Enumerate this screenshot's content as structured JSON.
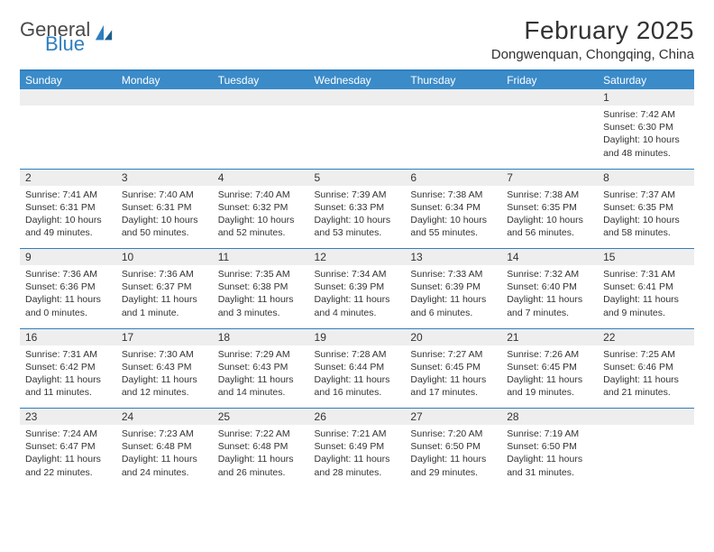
{
  "brand": {
    "textA": "General",
    "textB": "Blue",
    "colorA": "#4a4a4a",
    "colorB": "#2f7fbf"
  },
  "title": "February 2025",
  "location": "Dongwenquan, Chongqing, China",
  "accent_color": "#3b8bc9",
  "divider_color": "#2f7fbf",
  "daynum_bg": "#eeeeee",
  "text_color": "#333333",
  "background_color": "#ffffff",
  "font_family": "Arial, Helvetica, sans-serif",
  "title_fontsize": 28,
  "location_fontsize": 15,
  "header_fontsize": 12,
  "cell_fontsize": 10.5,
  "weekdays": [
    "Sunday",
    "Monday",
    "Tuesday",
    "Wednesday",
    "Thursday",
    "Friday",
    "Saturday"
  ],
  "weeks": [
    [
      null,
      null,
      null,
      null,
      null,
      null,
      {
        "n": "1",
        "sr": "Sunrise: 7:42 AM",
        "ss": "Sunset: 6:30 PM",
        "dl": "Daylight: 10 hours and 48 minutes."
      }
    ],
    [
      {
        "n": "2",
        "sr": "Sunrise: 7:41 AM",
        "ss": "Sunset: 6:31 PM",
        "dl": "Daylight: 10 hours and 49 minutes."
      },
      {
        "n": "3",
        "sr": "Sunrise: 7:40 AM",
        "ss": "Sunset: 6:31 PM",
        "dl": "Daylight: 10 hours and 50 minutes."
      },
      {
        "n": "4",
        "sr": "Sunrise: 7:40 AM",
        "ss": "Sunset: 6:32 PM",
        "dl": "Daylight: 10 hours and 52 minutes."
      },
      {
        "n": "5",
        "sr": "Sunrise: 7:39 AM",
        "ss": "Sunset: 6:33 PM",
        "dl": "Daylight: 10 hours and 53 minutes."
      },
      {
        "n": "6",
        "sr": "Sunrise: 7:38 AM",
        "ss": "Sunset: 6:34 PM",
        "dl": "Daylight: 10 hours and 55 minutes."
      },
      {
        "n": "7",
        "sr": "Sunrise: 7:38 AM",
        "ss": "Sunset: 6:35 PM",
        "dl": "Daylight: 10 hours and 56 minutes."
      },
      {
        "n": "8",
        "sr": "Sunrise: 7:37 AM",
        "ss": "Sunset: 6:35 PM",
        "dl": "Daylight: 10 hours and 58 minutes."
      }
    ],
    [
      {
        "n": "9",
        "sr": "Sunrise: 7:36 AM",
        "ss": "Sunset: 6:36 PM",
        "dl": "Daylight: 11 hours and 0 minutes."
      },
      {
        "n": "10",
        "sr": "Sunrise: 7:36 AM",
        "ss": "Sunset: 6:37 PM",
        "dl": "Daylight: 11 hours and 1 minute."
      },
      {
        "n": "11",
        "sr": "Sunrise: 7:35 AM",
        "ss": "Sunset: 6:38 PM",
        "dl": "Daylight: 11 hours and 3 minutes."
      },
      {
        "n": "12",
        "sr": "Sunrise: 7:34 AM",
        "ss": "Sunset: 6:39 PM",
        "dl": "Daylight: 11 hours and 4 minutes."
      },
      {
        "n": "13",
        "sr": "Sunrise: 7:33 AM",
        "ss": "Sunset: 6:39 PM",
        "dl": "Daylight: 11 hours and 6 minutes."
      },
      {
        "n": "14",
        "sr": "Sunrise: 7:32 AM",
        "ss": "Sunset: 6:40 PM",
        "dl": "Daylight: 11 hours and 7 minutes."
      },
      {
        "n": "15",
        "sr": "Sunrise: 7:31 AM",
        "ss": "Sunset: 6:41 PM",
        "dl": "Daylight: 11 hours and 9 minutes."
      }
    ],
    [
      {
        "n": "16",
        "sr": "Sunrise: 7:31 AM",
        "ss": "Sunset: 6:42 PM",
        "dl": "Daylight: 11 hours and 11 minutes."
      },
      {
        "n": "17",
        "sr": "Sunrise: 7:30 AM",
        "ss": "Sunset: 6:43 PM",
        "dl": "Daylight: 11 hours and 12 minutes."
      },
      {
        "n": "18",
        "sr": "Sunrise: 7:29 AM",
        "ss": "Sunset: 6:43 PM",
        "dl": "Daylight: 11 hours and 14 minutes."
      },
      {
        "n": "19",
        "sr": "Sunrise: 7:28 AM",
        "ss": "Sunset: 6:44 PM",
        "dl": "Daylight: 11 hours and 16 minutes."
      },
      {
        "n": "20",
        "sr": "Sunrise: 7:27 AM",
        "ss": "Sunset: 6:45 PM",
        "dl": "Daylight: 11 hours and 17 minutes."
      },
      {
        "n": "21",
        "sr": "Sunrise: 7:26 AM",
        "ss": "Sunset: 6:45 PM",
        "dl": "Daylight: 11 hours and 19 minutes."
      },
      {
        "n": "22",
        "sr": "Sunrise: 7:25 AM",
        "ss": "Sunset: 6:46 PM",
        "dl": "Daylight: 11 hours and 21 minutes."
      }
    ],
    [
      {
        "n": "23",
        "sr": "Sunrise: 7:24 AM",
        "ss": "Sunset: 6:47 PM",
        "dl": "Daylight: 11 hours and 22 minutes."
      },
      {
        "n": "24",
        "sr": "Sunrise: 7:23 AM",
        "ss": "Sunset: 6:48 PM",
        "dl": "Daylight: 11 hours and 24 minutes."
      },
      {
        "n": "25",
        "sr": "Sunrise: 7:22 AM",
        "ss": "Sunset: 6:48 PM",
        "dl": "Daylight: 11 hours and 26 minutes."
      },
      {
        "n": "26",
        "sr": "Sunrise: 7:21 AM",
        "ss": "Sunset: 6:49 PM",
        "dl": "Daylight: 11 hours and 28 minutes."
      },
      {
        "n": "27",
        "sr": "Sunrise: 7:20 AM",
        "ss": "Sunset: 6:50 PM",
        "dl": "Daylight: 11 hours and 29 minutes."
      },
      {
        "n": "28",
        "sr": "Sunrise: 7:19 AM",
        "ss": "Sunset: 6:50 PM",
        "dl": "Daylight: 11 hours and 31 minutes."
      },
      null
    ]
  ]
}
